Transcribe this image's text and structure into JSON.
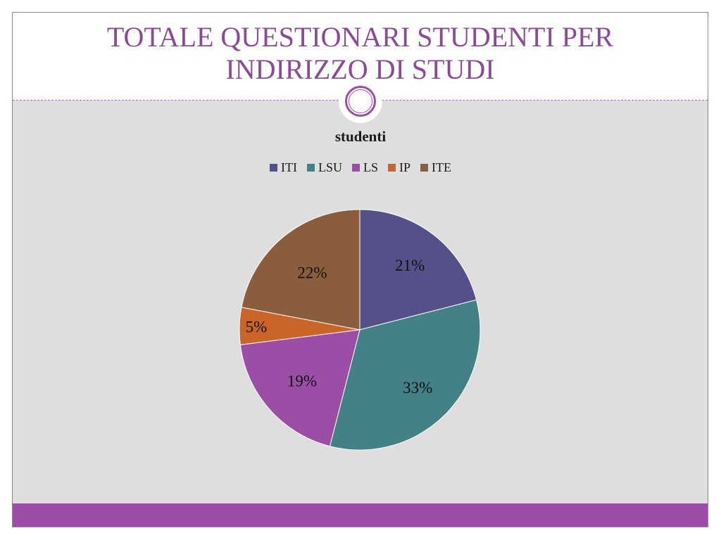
{
  "slide": {
    "title": "TOTALE QUESTIONARI STUDENTI PER INDIRIZZO DI STUDI",
    "accent_color": "#9c4ea6",
    "title_color": "#8a4a96",
    "content_background": "#dedede"
  },
  "chart_data": {
    "type": "pie",
    "title": "studenti",
    "legend_position": "top",
    "categories": [
      "ITI",
      "LSU",
      "LS",
      "IP",
      "ITE"
    ],
    "values": [
      21,
      33,
      19,
      5,
      22
    ],
    "labels": [
      "21%",
      "33%",
      "19%",
      "5%",
      "22%"
    ],
    "colors": [
      "#545089",
      "#438187",
      "#9c4ea6",
      "#cb6428",
      "#8a5d3c"
    ]
  }
}
